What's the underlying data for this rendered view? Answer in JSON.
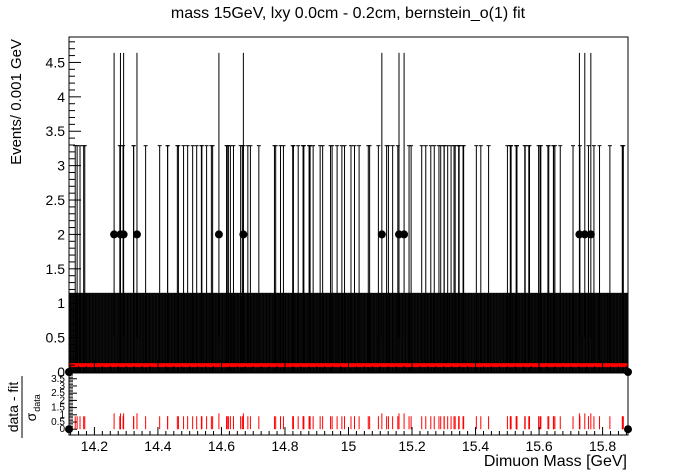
{
  "chart_data": [
    {
      "type": "scatter",
      "title": "mass 15GeV, lxy 0.0cm - 0.2cm, bernstein_o(1) fit",
      "ylabel": "Events/ 0.001 GeV",
      "xlim": [
        14.12,
        15.88
      ],
      "ylim": [
        0,
        4.87
      ],
      "y_ticks": [
        0.5,
        1,
        1.5,
        2,
        2.5,
        3,
        3.5,
        4,
        4.5
      ],
      "y_tick_labels": [
        "0.5",
        "1",
        "1.5",
        "2",
        "2.5",
        "3",
        "3.5",
        "4",
        "4.5"
      ],
      "y_zero_label": "0",
      "series": [
        {
          "points_y2": [
            14.262,
            14.282,
            14.292,
            14.334,
            14.592,
            14.669,
            15.105,
            15.159,
            15.175,
            15.727,
            15.744,
            15.763
          ],
          "points_y1_count": 120,
          "points_y0_count": 1500,
          "error_y2_high": 4.64,
          "error_y1_high": 3.29,
          "error_y0_high": 1.15
        }
      ],
      "fit": {
        "type": "line",
        "color": "#ff0000",
        "value": 0.1
      }
    },
    {
      "type": "bar",
      "ylabel_num": "data - fit",
      "ylabel_den": "σ",
      "ylabel_den_sub": "data",
      "ylim": [
        -0.4,
        3.9
      ],
      "y_tick_labels": [
        "0",
        "0.5",
        "1",
        "1.5",
        "2",
        "2.5",
        "3",
        "3.5"
      ],
      "y_ticks": [
        0,
        0.5,
        1,
        1.5,
        2,
        2.5,
        3,
        3.5
      ],
      "xlabel": "Dimuon Mass [GeV]",
      "x_ticks": [
        14.2,
        14.4,
        14.6,
        14.8,
        15,
        15.2,
        15.4,
        15.6,
        15.8
      ],
      "x_tick_labels": [
        "14.2",
        "14.4",
        "14.6",
        "14.8",
        "15",
        "15.2",
        "15.4",
        "15.6",
        "15.8"
      ],
      "pull_color": "#ff0000",
      "pull_y1": 0.9,
      "pull_y2": 1.1
    }
  ]
}
